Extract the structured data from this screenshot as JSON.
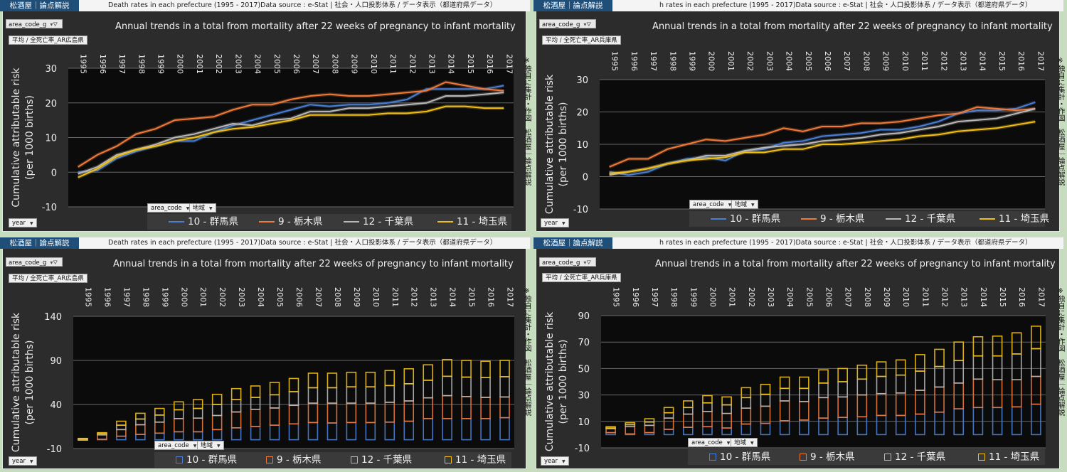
{
  "brand": "松酒屋｜論点解説",
  "header_full": "Death rates in each prefecture (1995 - 2017)Data source : e-Stat | 社会・人口投影体系 / データ表示（都道府県データ）",
  "header_cut": "h rates in each prefecture (1995 - 2017)Data source : e-Stat | 社会・人口投影体系 / データ表示（都道府県データ）",
  "title": "Annual trends in a total from mortality after 22 weeks of pregnancy to infant mortality",
  "slicer_area": "area_code_g",
  "slicer_value_hiroshima": "平均 / 全死亡率_AR広島県",
  "slicer_value_hyogo": "平均 / 全死亡率_AR兵庫県",
  "filter_area_code": "area_code",
  "filter_region": "地域",
  "filter_year": "year",
  "side_note": "※独自に集計・作図　松酒屋｜論点解説",
  "ylabel_line1": "Cumulative attributable risk",
  "ylabel_line2": "(per 1000 births)",
  "colors": {
    "gunma": "#4a7fd4",
    "tochigi": "#f07a3a",
    "chiba": "#b8b8b8",
    "saitama": "#f2c014"
  },
  "chart_data": [
    {
      "type": "line",
      "position": "top-left",
      "title": "Annual trends in a total from mortality after 22 weeks of pregnancy to infant mortality",
      "ylabel": "Cumulative attributable risk (per 1000 births)",
      "ylim": [
        -10,
        30
      ],
      "yticks": [
        -10,
        0,
        10,
        20,
        30
      ],
      "categories": [
        "1995",
        "1996",
        "1997",
        "1998",
        "1999",
        "2000",
        "2001",
        "2002",
        "2003",
        "2004",
        "2005",
        "2006",
        "2007",
        "2008",
        "2009",
        "2010",
        "2011",
        "2012",
        "2013",
        "2014",
        "2015",
        "2016",
        "2017"
      ],
      "series": [
        {
          "name": "10 - 群馬県",
          "values": [
            0,
            0.5,
            4,
            6,
            7.5,
            9,
            9,
            11.5,
            13.5,
            15,
            16.5,
            18,
            19.5,
            19,
            19.5,
            19.5,
            20,
            21,
            24,
            24,
            24,
            24,
            25
          ]
        },
        {
          "name": "9 - 栃木県",
          "values": [
            1.5,
            5,
            7.5,
            11,
            12.5,
            15,
            15.5,
            16,
            18,
            19.5,
            19.5,
            21,
            22,
            22.5,
            22,
            22,
            22.5,
            23,
            23.5,
            26,
            25,
            24,
            23.5
          ]
        },
        {
          "name": "12 - 千葉県",
          "values": [
            -0.5,
            1.5,
            5,
            6.5,
            8,
            10,
            11,
            12.5,
            14,
            13.5,
            15,
            15.5,
            17.5,
            17.5,
            18.5,
            18.5,
            19,
            19.5,
            20,
            22,
            22,
            22.5,
            23
          ]
        },
        {
          "name": "11 - 埼玉県",
          "values": [
            -1.5,
            1,
            4.5,
            6.5,
            7.5,
            9,
            10,
            11.5,
            12.5,
            13,
            14,
            15,
            16.5,
            16.5,
            16.5,
            16.5,
            17,
            17,
            17.5,
            19,
            19,
            18.5,
            18.5
          ]
        }
      ]
    },
    {
      "type": "line",
      "position": "top-right",
      "title": "Annual trends in a total from mortality after 22 weeks of pregnancy to infant mortality",
      "ylabel": "Cumulative attributable risk (per 1000 births)",
      "ylim": [
        -10,
        30
      ],
      "yticks": [
        -10,
        0,
        10,
        20,
        30
      ],
      "categories": [
        "1995",
        "1996",
        "1997",
        "1998",
        "1999",
        "2000",
        "2001",
        "2002",
        "2003",
        "2004",
        "2005",
        "2006",
        "2007",
        "2008",
        "2009",
        "2010",
        "2011",
        "2012",
        "2013",
        "2014",
        "2015",
        "2016",
        "2017"
      ],
      "series": [
        {
          "name": "10 - 群馬県",
          "values": [
            1.5,
            0.5,
            1.5,
            4,
            5.5,
            6,
            5,
            8,
            8.5,
            10.5,
            11,
            12.5,
            13,
            13.5,
            14.5,
            14.5,
            15.5,
            17,
            19.5,
            20.5,
            20.5,
            21,
            23
          ]
        },
        {
          "name": "9 - 栃木県",
          "values": [
            3,
            5.5,
            5.5,
            8.5,
            10,
            11.5,
            11,
            12,
            13,
            15,
            14,
            15.5,
            15.5,
            16.5,
            16.5,
            17,
            18,
            19,
            19.5,
            21.5,
            21,
            20.5,
            21
          ]
        },
        {
          "name": "12 - 千葉県",
          "values": [
            0.5,
            1.5,
            2.5,
            4,
            5,
            6.5,
            6.5,
            8,
            9,
            9.5,
            10,
            11,
            11.5,
            12,
            13,
            13.5,
            14.5,
            15.5,
            17,
            17.5,
            18,
            19.5,
            21
          ]
        },
        {
          "name": "11 - 埼玉県",
          "values": [
            1,
            1.5,
            2.5,
            4,
            5,
            5.5,
            6,
            7.5,
            7.5,
            8.5,
            8.5,
            10,
            10,
            10.5,
            11,
            11.5,
            12.5,
            13,
            14,
            14.5,
            15,
            16,
            17
          ]
        }
      ]
    },
    {
      "type": "bar",
      "stacked": true,
      "position": "bottom-left",
      "title": "Annual trends in a total from mortality after 22 weeks of pregnancy to infant mortality",
      "ylabel": "Cumulative attributable risk (per 1000 births)",
      "ylim": [
        -10,
        140
      ],
      "yticks": [
        -10,
        40,
        90,
        140
      ],
      "categories": [
        "1995",
        "1996",
        "1997",
        "1998",
        "1999",
        "2000",
        "2001",
        "2002",
        "2003",
        "2004",
        "2005",
        "2006",
        "2007",
        "2008",
        "2009",
        "2010",
        "2011",
        "2012",
        "2013",
        "2014",
        "2015",
        "2016",
        "2017"
      ],
      "series": [
        {
          "name": "10 - 群馬県",
          "values": [
            0,
            0.5,
            4,
            6,
            7.5,
            9,
            9,
            11.5,
            13.5,
            15,
            16.5,
            18,
            19.5,
            19,
            19.5,
            19.5,
            20,
            21,
            24,
            24,
            24,
            24,
            25
          ]
        },
        {
          "name": "9 - 栃木県",
          "values": [
            1.5,
            5,
            7.5,
            11,
            12.5,
            15,
            15.5,
            16,
            18,
            19.5,
            19.5,
            21,
            22,
            22.5,
            22,
            22,
            22.5,
            23,
            23.5,
            26,
            25,
            24,
            23.5
          ]
        },
        {
          "name": "12 - 千葉県",
          "values": [
            -0.5,
            1.5,
            5,
            6.5,
            8,
            10,
            11,
            12.5,
            14,
            13.5,
            15,
            15.5,
            17.5,
            17.5,
            18.5,
            18.5,
            19,
            19.5,
            20,
            22,
            22,
            22.5,
            23
          ]
        },
        {
          "name": "11 - 埼玉県",
          "values": [
            -1.5,
            1,
            4.5,
            6.5,
            7.5,
            9,
            10,
            11.5,
            12.5,
            13,
            14,
            15,
            16.5,
            16.5,
            16.5,
            16.5,
            17,
            17,
            17.5,
            19,
            19,
            18.5,
            18.5
          ]
        }
      ]
    },
    {
      "type": "bar",
      "stacked": true,
      "position": "bottom-right",
      "title": "Annual trends in a total from mortality after 22 weeks of pregnancy to infant mortality",
      "ylabel": "Cumulative attributable risk (per 1000 births)",
      "ylim": [
        -10,
        90
      ],
      "yticks": [
        -10,
        10,
        30,
        50,
        70,
        90
      ],
      "categories": [
        "1995",
        "1996",
        "1997",
        "1998",
        "1999",
        "2000",
        "2001",
        "2002",
        "2003",
        "2004",
        "2005",
        "2006",
        "2007",
        "2008",
        "2009",
        "2010",
        "2011",
        "2012",
        "2013",
        "2014",
        "2015",
        "2016",
        "2017"
      ],
      "series": [
        {
          "name": "10 - 群馬県",
          "values": [
            1.5,
            0.5,
            1.5,
            4,
            5.5,
            6,
            5,
            8,
            8.5,
            10.5,
            11,
            12.5,
            13,
            13.5,
            14.5,
            14.5,
            15.5,
            17,
            19.5,
            20.5,
            20.5,
            21,
            23
          ]
        },
        {
          "name": "9 - 栃木県",
          "values": [
            3,
            5.5,
            5.5,
            8.5,
            10,
            11.5,
            11,
            12,
            13,
            15,
            14,
            15.5,
            15.5,
            16.5,
            16.5,
            17,
            18,
            19,
            19.5,
            21.5,
            21,
            20.5,
            21
          ]
        },
        {
          "name": "12 - 千葉県",
          "values": [
            0.5,
            1.5,
            2.5,
            4,
            5,
            6.5,
            6.5,
            8,
            9,
            9.5,
            10,
            11,
            11.5,
            12,
            13,
            13.5,
            14.5,
            15.5,
            17,
            17.5,
            18,
            19.5,
            21
          ]
        },
        {
          "name": "11 - 埼玉県",
          "values": [
            1,
            1.5,
            2.5,
            4,
            5,
            5.5,
            6,
            7.5,
            7.5,
            8.5,
            8.5,
            10,
            10,
            10.5,
            11,
            11.5,
            12.5,
            13,
            14,
            14.5,
            15,
            16,
            17
          ]
        }
      ]
    }
  ]
}
